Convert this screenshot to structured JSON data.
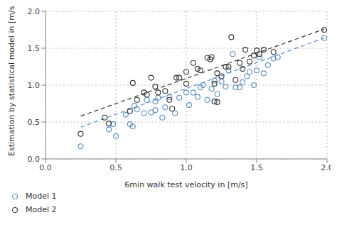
{
  "chart_data": {
    "type": "scatter",
    "x_label": "6min walk test velocity in [m/s]",
    "y_label": "Estimation by statistical model in [m/s]",
    "xlim": [
      0,
      2
    ],
    "ylim": [
      0,
      2
    ],
    "xticks": [
      {
        "value": 0,
        "label": "0.0"
      },
      {
        "value": 0.5,
        "label": "0.5"
      },
      {
        "value": 1,
        "label": "1.0"
      },
      {
        "value": 1.5,
        "label": "1.5"
      },
      {
        "value": 2,
        "label": "2.0"
      }
    ],
    "yticks": [
      {
        "value": 0,
        "label": "0.0"
      },
      {
        "value": 0.5,
        "label": "0.5"
      },
      {
        "value": 1,
        "label": "1.0"
      },
      {
        "value": 1.5,
        "label": "1.5"
      },
      {
        "value": 2,
        "label": "2.0"
      }
    ],
    "grid": true,
    "legend": "bottom left",
    "series": [
      {
        "name": "Model 1",
        "type": "scatter",
        "marker": "circle",
        "color": "#5b8fc7",
        "x": [
          0.25,
          0.45,
          0.48,
          0.5,
          0.57,
          0.6,
          0.62,
          0.63,
          0.65,
          0.7,
          0.72,
          0.75,
          0.78,
          0.78,
          0.8,
          0.83,
          0.85,
          0.88,
          0.92,
          0.95,
          1.0,
          1.02,
          1.05,
          1.08,
          1.1,
          1.12,
          1.15,
          1.18,
          1.2,
          1.22,
          1.25,
          1.28,
          1.3,
          1.33,
          1.35,
          1.38,
          1.4,
          1.43,
          1.45,
          1.48,
          1.5,
          1.52,
          1.55,
          1.58,
          1.62,
          1.65,
          1.98
        ],
        "values": [
          0.17,
          0.4,
          0.47,
          0.31,
          0.6,
          0.47,
          0.44,
          0.72,
          0.67,
          0.62,
          0.8,
          0.63,
          0.66,
          0.78,
          0.83,
          0.56,
          0.7,
          0.84,
          0.62,
          0.83,
          0.9,
          0.73,
          0.9,
          0.84,
          0.97,
          1.0,
          0.8,
          0.95,
          1.06,
          0.88,
          1.05,
          0.98,
          1.2,
          1.42,
          0.97,
          0.97,
          1.04,
          1.12,
          1.18,
          1.0,
          1.2,
          1.38,
          1.16,
          1.27,
          1.36,
          1.38,
          1.64
        ]
      },
      {
        "name": "Model 2",
        "type": "scatter",
        "marker": "circle",
        "color": "#333333",
        "x": [
          0.25,
          0.42,
          0.45,
          0.6,
          0.62,
          0.65,
          0.7,
          0.72,
          0.75,
          0.78,
          0.8,
          0.85,
          0.88,
          0.9,
          0.93,
          0.95,
          1.0,
          1.0,
          1.05,
          1.08,
          1.1,
          1.15,
          1.17,
          1.18,
          1.2,
          1.2,
          1.22,
          1.22,
          1.25,
          1.28,
          1.3,
          1.32,
          1.35,
          1.38,
          1.4,
          1.42,
          1.45,
          1.48,
          1.5,
          1.52,
          1.55,
          1.62,
          1.98
        ],
        "values": [
          0.34,
          0.56,
          0.48,
          0.65,
          1.03,
          0.8,
          0.9,
          0.87,
          1.1,
          0.98,
          0.9,
          0.92,
          0.8,
          0.68,
          1.1,
          1.1,
          1.02,
          1.18,
          1.3,
          1.22,
          1.2,
          1.37,
          1.35,
          1.38,
          1.02,
          0.78,
          1.16,
          0.77,
          1.12,
          1.25,
          1.25,
          1.65,
          1.07,
          1.3,
          1.22,
          1.48,
          1.32,
          1.4,
          1.47,
          1.42,
          1.48,
          1.45,
          1.75
        ]
      },
      {
        "type": "line",
        "line_style": "dashed",
        "color": "#5b8fc7",
        "x": [
          0.25,
          1.98
        ],
        "values": [
          0.43,
          1.64
        ]
      },
      {
        "type": "line",
        "line_style": "dashed",
        "color": "#333333",
        "x": [
          0.25,
          1.98
        ],
        "values": [
          0.58,
          1.76
        ]
      }
    ]
  }
}
